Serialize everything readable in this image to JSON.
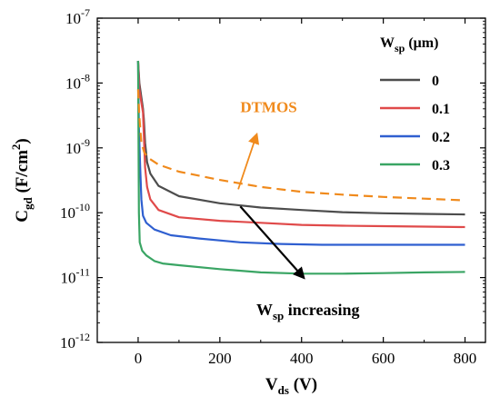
{
  "chart_data": {
    "type": "line",
    "title": "",
    "xlabel": {
      "main": "V",
      "sub": "ds",
      "unit": " (V)"
    },
    "ylabel": {
      "main": "C",
      "sub": "gd",
      "unit": " (F/cm",
      "sup": "2",
      "close": ")"
    },
    "xlim": [
      -100,
      850
    ],
    "ylim_log10": [
      -12,
      -7
    ],
    "yscale": "log",
    "x_ticks": [
      0,
      200,
      400,
      600,
      800
    ],
    "x_tick_labels": [
      "0",
      "200",
      "400",
      "600",
      "800"
    ],
    "y_ticks_exp": [
      -12,
      -11,
      -10,
      -9,
      -8,
      -7
    ],
    "y_tick_base": "10",
    "grid": false,
    "legend": {
      "position": "top-right",
      "title_main": "W",
      "title_sub": "sp",
      "title_unit": " (μm)"
    },
    "series": [
      {
        "name": "0",
        "color": "#4d4d4d",
        "dash": "none",
        "points": [
          [
            0,
            2.2e-08
          ],
          [
            3,
            1e-08
          ],
          [
            8,
            6e-09
          ],
          [
            12,
            4e-09
          ],
          [
            14,
            2.8e-09
          ],
          [
            17,
            1.2e-09
          ],
          [
            22,
            6e-10
          ],
          [
            30,
            4e-10
          ],
          [
            50,
            2.6e-10
          ],
          [
            100,
            1.8e-10
          ],
          [
            200,
            1.4e-10
          ],
          [
            300,
            1.2e-10
          ],
          [
            400,
            1.1e-10
          ],
          [
            500,
            1.02e-10
          ],
          [
            600,
            9.8e-11
          ],
          [
            700,
            9.6e-11
          ],
          [
            800,
            9.4e-11
          ]
        ]
      },
      {
        "name": "0.1",
        "color": "#e04a4a",
        "dash": "none",
        "points": [
          [
            0,
            2.2e-08
          ],
          [
            3,
            8e-09
          ],
          [
            8,
            5e-09
          ],
          [
            12,
            3.5e-09
          ],
          [
            14,
            1.6e-09
          ],
          [
            17,
            5e-10
          ],
          [
            22,
            2.5e-10
          ],
          [
            30,
            1.6e-10
          ],
          [
            50,
            1.1e-10
          ],
          [
            100,
            8.5e-11
          ],
          [
            200,
            7.5e-11
          ],
          [
            300,
            7e-11
          ],
          [
            400,
            6.5e-11
          ],
          [
            500,
            6.3e-11
          ],
          [
            600,
            6.2e-11
          ],
          [
            700,
            6.1e-11
          ],
          [
            800,
            6e-11
          ]
        ]
      },
      {
        "name": "0.2",
        "color": "#2f5fd0",
        "dash": "none",
        "points": [
          [
            0,
            2.2e-08
          ],
          [
            2,
            2e-09
          ],
          [
            5,
            5e-10
          ],
          [
            8,
            1.6e-10
          ],
          [
            12,
            9e-11
          ],
          [
            20,
            7e-11
          ],
          [
            40,
            5.5e-11
          ],
          [
            80,
            4.5e-11
          ],
          [
            150,
            4e-11
          ],
          [
            250,
            3.5e-11
          ],
          [
            350,
            3.3e-11
          ],
          [
            450,
            3.2e-11
          ],
          [
            550,
            3.2e-11
          ],
          [
            650,
            3.2e-11
          ],
          [
            800,
            3.2e-11
          ]
        ]
      },
      {
        "name": "0.3",
        "color": "#3aa564",
        "dash": "none",
        "points": [
          [
            0,
            2.2e-08
          ],
          [
            1,
            1e-09
          ],
          [
            2,
            1e-10
          ],
          [
            4,
            3.5e-11
          ],
          [
            10,
            2.6e-11
          ],
          [
            20,
            2.2e-11
          ],
          [
            40,
            1.8e-11
          ],
          [
            60,
            1.65e-11
          ],
          [
            100,
            1.55e-11
          ],
          [
            200,
            1.35e-11
          ],
          [
            300,
            1.2e-11
          ],
          [
            400,
            1.15e-11
          ],
          [
            500,
            1.15e-11
          ],
          [
            600,
            1.17e-11
          ],
          [
            700,
            1.2e-11
          ],
          [
            800,
            1.22e-11
          ]
        ]
      },
      {
        "name": "DTMOS",
        "color": "#f08a1c",
        "dash": "10,6",
        "in_legend": false,
        "points": [
          [
            0,
            8e-09
          ],
          [
            3,
            3e-09
          ],
          [
            8,
            1.2e-09
          ],
          [
            15,
            8.5e-10
          ],
          [
            25,
            7e-10
          ],
          [
            50,
            5.5e-10
          ],
          [
            100,
            4.3e-10
          ],
          [
            200,
            3.2e-10
          ],
          [
            300,
            2.5e-10
          ],
          [
            400,
            2.1e-10
          ],
          [
            500,
            1.9e-10
          ],
          [
            600,
            1.75e-10
          ],
          [
            700,
            1.65e-10
          ],
          [
            800,
            1.55e-10
          ]
        ]
      }
    ],
    "annotations": [
      {
        "text": "DTMOS",
        "color": "#f08a1c",
        "x": 250,
        "y_log10": -8.45
      },
      {
        "text_main": "W",
        "text_sub": "sp",
        "text_rest": " increasing",
        "color": "#000000",
        "x": 400,
        "y_log10": -11.45
      }
    ]
  }
}
